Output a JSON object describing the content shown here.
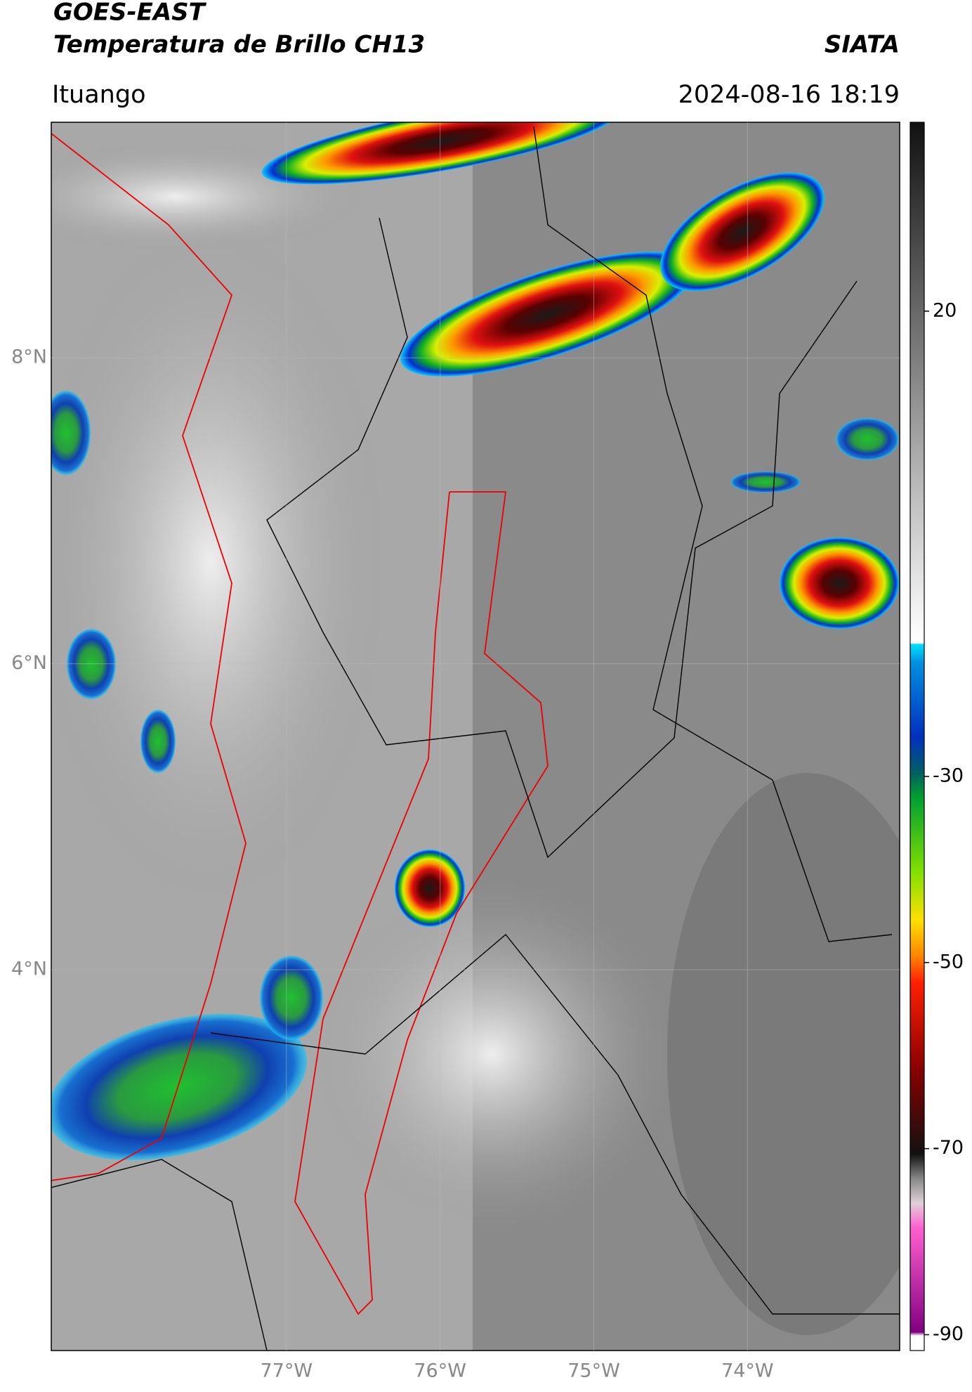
{
  "chart_data": {
    "type": "map",
    "title": "GOES-EAST",
    "subtitle": "Temperatura de Brillo CH13",
    "source": "SIATA",
    "region": "Ituango",
    "datetime": "2024-08-16 18:19",
    "xlim": [
      -78.53,
      -73.01
    ],
    "ylim": [
      1.51,
      9.54
    ],
    "xticks": [
      {
        "value": -77,
        "label": "77°W"
      },
      {
        "value": -76,
        "label": "76°W"
      },
      {
        "value": -75,
        "label": "75°W"
      },
      {
        "value": -74,
        "label": "74°W"
      }
    ],
    "yticks": [
      {
        "value": 8,
        "label": "8°N"
      },
      {
        "value": 6,
        "label": "6°N"
      },
      {
        "value": 4,
        "label": "4°N"
      }
    ],
    "clim": [
      -91.7,
      40.3
    ],
    "cticks": [
      20,
      -30,
      -50,
      -70,
      -90
    ],
    "grid": true
  }
}
